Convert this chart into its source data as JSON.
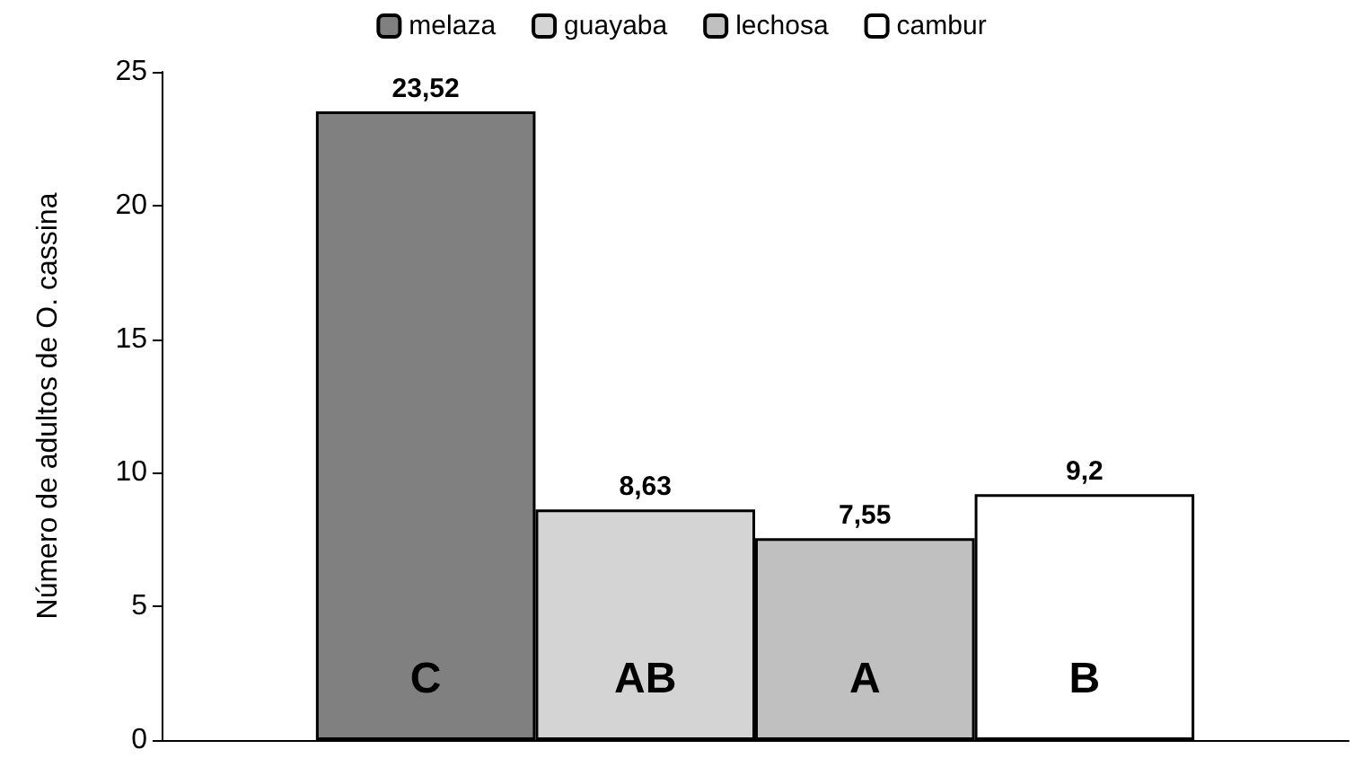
{
  "chart_data": {
    "type": "bar",
    "ylabel": "Número de adultos de O. cassina",
    "categories": [
      null
    ],
    "series": [
      {
        "name": "melaza",
        "color": "#808080",
        "values": [
          23.52
        ],
        "value_labels": [
          "23,52"
        ]
      },
      {
        "name": "guayaba",
        "color": "#d4d4d4",
        "values": [
          8.63
        ],
        "value_labels": [
          "8,63"
        ]
      },
      {
        "name": "lechosa",
        "color": "#c0c0c0",
        "values": [
          7.55
        ],
        "value_labels": [
          "7,55"
        ]
      },
      {
        "name": "cambur",
        "color": "#ffffff",
        "values": [
          9.2
        ],
        "value_labels": [
          "9,2"
        ]
      }
    ],
    "annotations": [
      "C",
      "AB",
      "A",
      "B"
    ],
    "ylim": [
      0,
      25
    ],
    "yticks": [
      0,
      5,
      10,
      15,
      20,
      25
    ],
    "grid": false,
    "legend": "top"
  }
}
